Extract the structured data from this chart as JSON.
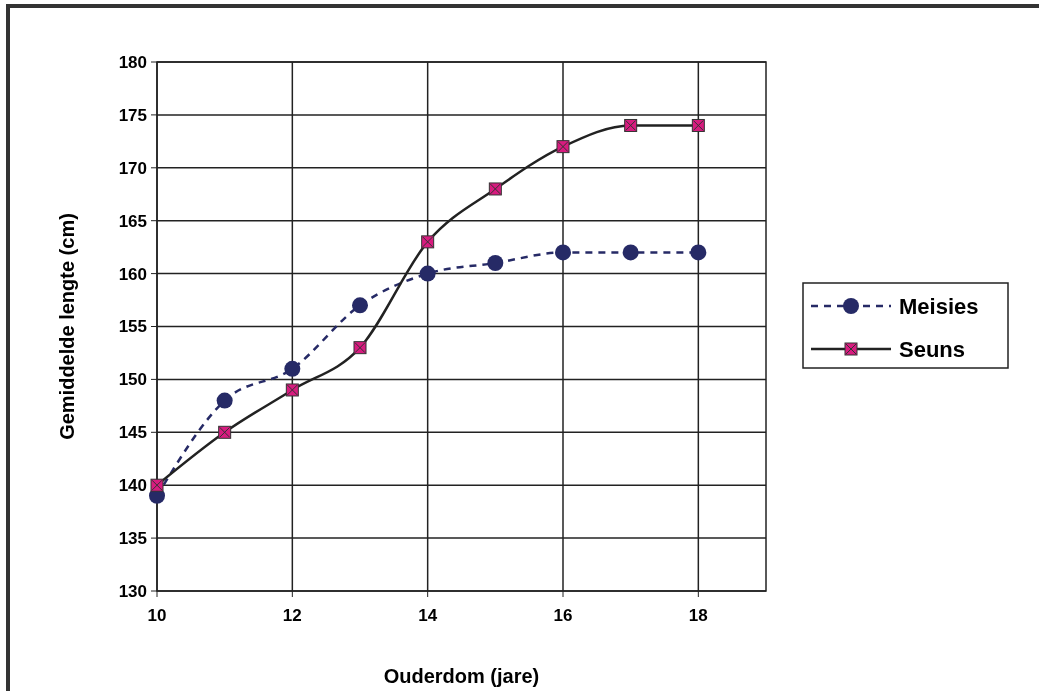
{
  "chart_data": {
    "type": "line",
    "xlabel": "Ouderdom (jare)",
    "ylabel": "Gemiddelde lengte (cm)",
    "x": [
      10,
      11,
      12,
      13,
      14,
      15,
      16,
      17,
      18
    ],
    "series": [
      {
        "name": "Meisies",
        "color": "#262a66",
        "marker": "circle",
        "line_style": "dashed",
        "values": [
          139,
          148,
          151,
          157,
          160,
          161,
          162,
          162,
          162
        ]
      },
      {
        "name": "Seuns",
        "color": "#d81b7f",
        "marker": "square",
        "line_style": "solid",
        "values": [
          140,
          145,
          149,
          153,
          163,
          168,
          172,
          174,
          174
        ]
      }
    ],
    "xlim": [
      10,
      19
    ],
    "xticks": [
      10,
      12,
      14,
      16,
      18
    ],
    "ylim": [
      130,
      180
    ],
    "yticks": [
      130,
      135,
      140,
      145,
      150,
      155,
      160,
      165,
      170,
      175,
      180
    ],
    "grid": true,
    "legend": "right"
  }
}
